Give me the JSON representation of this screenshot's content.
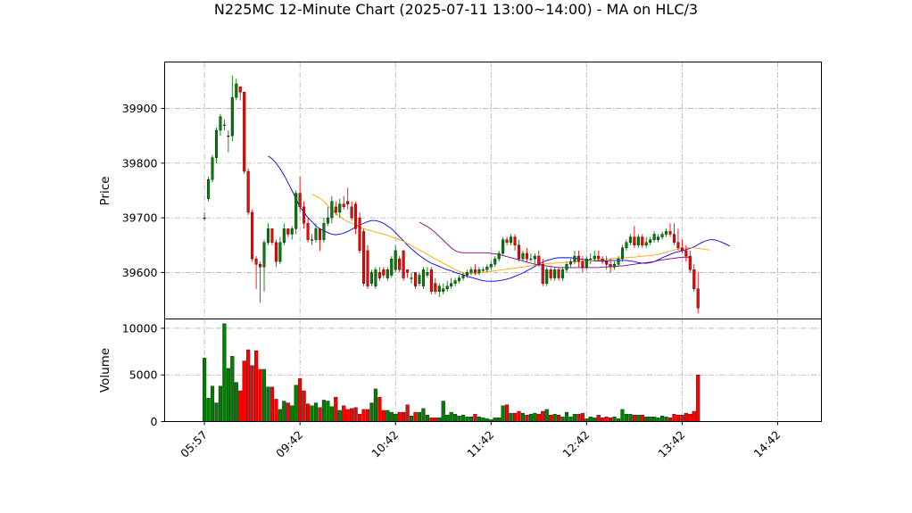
{
  "chart_data": {
    "type": "candlestick",
    "title": "N225MC 12-Minute Chart (2025-07-11 13:00~14:00) - MA on HLC/3",
    "price_panel": {
      "ylabel": "Price",
      "ylim": [
        39515,
        39985
      ],
      "yticks": [
        39600,
        39700,
        39800,
        39900
      ],
      "ytick_labels": [
        "39600",
        "39700",
        "39800",
        "39900"
      ]
    },
    "volume_panel": {
      "ylabel": "Volume",
      "ylim": [
        0,
        11000
      ],
      "yticks": [
        0,
        5000,
        10000
      ],
      "ytick_labels": [
        "0",
        "5000",
        "10000"
      ]
    },
    "xlim": [
      -10,
      155
    ],
    "xticks": [
      0,
      24,
      48,
      72,
      96,
      120,
      144
    ],
    "xtick_labels": [
      "05:57",
      "09:42",
      "10:42",
      "11:42",
      "12:42",
      "13:42",
      "14:42"
    ],
    "colors": {
      "up": "#008000",
      "down": "#ff0000",
      "ma1": "#0000ff",
      "ma2": "#ffa500",
      "ma3": "#800080"
    },
    "candles": {
      "open": [
        39700,
        39735,
        39770,
        39810,
        39860,
        39870,
        39850,
        39850,
        39920,
        39940,
        39930,
        39785,
        39710,
        39625,
        39615,
        39610,
        39655,
        39680,
        39655,
        39620,
        39655,
        39680,
        39670,
        39680,
        39745,
        39720,
        39690,
        39660,
        39660,
        39680,
        39660,
        39690,
        39700,
        39720,
        39710,
        39725,
        39730,
        39720,
        39725,
        39700,
        39675,
        39640,
        39580,
        39575,
        39600,
        39605,
        39590,
        39595,
        39605,
        39625,
        39640,
        39605,
        39590,
        39600,
        39580,
        39575,
        39595,
        39605,
        39580,
        39565,
        39565,
        39570,
        39575,
        39580,
        39585,
        39590,
        39595,
        39600,
        39605,
        39600,
        39605,
        39605,
        39610,
        39615,
        39625,
        39635,
        39660,
        39655,
        39665,
        39650,
        39625,
        39635,
        39625,
        39625,
        39630,
        39615,
        39580,
        39605,
        39590,
        39605,
        39590,
        39605,
        39615,
        39620,
        39630,
        39620,
        39610,
        39625,
        39625,
        39630,
        39625,
        39620,
        39615,
        39610,
        39615,
        39625,
        39645,
        39655,
        39665,
        39650,
        39665,
        39650,
        39655,
        39660,
        39660,
        39665,
        39670,
        39675,
        39670,
        39655,
        39645,
        39640,
        39630,
        39605,
        39570
      ],
      "close": [
        39700,
        39770,
        39810,
        39860,
        39885,
        39870,
        39850,
        39920,
        39945,
        39930,
        39785,
        39710,
        39625,
        39615,
        39610,
        39655,
        39680,
        39655,
        39620,
        39655,
        39680,
        39670,
        39680,
        39745,
        39720,
        39690,
        39660,
        39660,
        39680,
        39660,
        39690,
        39700,
        39730,
        39710,
        39725,
        39720,
        39725,
        39700,
        39680,
        39640,
        39580,
        39575,
        39600,
        39605,
        39590,
        39595,
        39605,
        39625,
        39640,
        39605,
        39590,
        39600,
        39590,
        39575,
        39595,
        39605,
        39600,
        39565,
        39565,
        39575,
        39570,
        39575,
        39580,
        39585,
        39590,
        39595,
        39600,
        39605,
        39600,
        39605,
        39605,
        39610,
        39615,
        39625,
        39635,
        39660,
        39655,
        39665,
        39650,
        39625,
        39635,
        39625,
        39625,
        39630,
        39615,
        39580,
        39605,
        39590,
        39605,
        39590,
        39605,
        39615,
        39620,
        39630,
        39620,
        39610,
        39625,
        39625,
        39630,
        39625,
        39620,
        39615,
        39610,
        39615,
        39625,
        39645,
        39655,
        39665,
        39650,
        39665,
        39650,
        39655,
        39660,
        39670,
        39665,
        39670,
        39675,
        39670,
        39655,
        39645,
        39640,
        39630,
        39605,
        39570,
        39535
      ],
      "high": [
        39710,
        39775,
        39815,
        39865,
        39890,
        39880,
        39860,
        39960,
        39955,
        39940,
        39930,
        39790,
        39715,
        39630,
        39620,
        39660,
        39690,
        39680,
        39660,
        39665,
        39690,
        39680,
        39685,
        39750,
        39775,
        39730,
        39700,
        39670,
        39690,
        39680,
        39700,
        39720,
        39740,
        39730,
        39735,
        39740,
        39755,
        39730,
        39730,
        39710,
        39680,
        39650,
        39605,
        39610,
        39610,
        39610,
        39610,
        39630,
        39650,
        39630,
        39600,
        39605,
        39600,
        39595,
        39600,
        39610,
        39610,
        39610,
        39590,
        39580,
        39580,
        39585,
        39590,
        39590,
        39595,
        39600,
        39605,
        39610,
        39615,
        39610,
        39610,
        39615,
        39620,
        39630,
        39640,
        39665,
        39665,
        39670,
        39670,
        39660,
        39640,
        39645,
        39635,
        39635,
        39640,
        39625,
        39610,
        39610,
        39610,
        39610,
        39610,
        39620,
        39625,
        39640,
        39640,
        39630,
        39630,
        39635,
        39640,
        39640,
        39630,
        39630,
        39625,
        39620,
        39630,
        39650,
        39660,
        39670,
        39685,
        39670,
        39670,
        39665,
        39665,
        39675,
        39670,
        39675,
        39680,
        39690,
        39690,
        39680,
        39660,
        39650,
        39640,
        39615,
        39600
      ],
      "low": [
        39695,
        39730,
        39765,
        39800,
        39850,
        39860,
        39820,
        39840,
        39915,
        39915,
        39780,
        39705,
        39620,
        39570,
        39545,
        39565,
        39650,
        39650,
        39610,
        39615,
        39650,
        39665,
        39660,
        39670,
        39710,
        39680,
        39655,
        39650,
        39655,
        39640,
        39655,
        39685,
        39690,
        39705,
        39700,
        39715,
        39715,
        39695,
        39670,
        39635,
        39575,
        39570,
        39575,
        39570,
        39585,
        39590,
        39585,
        39590,
        39600,
        39600,
        39585,
        39590,
        39580,
        39570,
        39575,
        39570,
        39590,
        39560,
        39560,
        39555,
        39560,
        39565,
        39570,
        39575,
        39580,
        39585,
        39590,
        39595,
        39595,
        39595,
        39600,
        39600,
        39605,
        39610,
        39620,
        39630,
        39650,
        39650,
        39640,
        39620,
        39620,
        39620,
        39620,
        39615,
        39610,
        39575,
        39575,
        39585,
        39585,
        39585,
        39585,
        39600,
        39610,
        39615,
        39610,
        39600,
        39605,
        39615,
        39620,
        39620,
        39615,
        39605,
        39600,
        39605,
        39610,
        39620,
        39640,
        39650,
        39645,
        39645,
        39645,
        39645,
        39650,
        39655,
        39655,
        39660,
        39665,
        39665,
        39650,
        39640,
        39635,
        39620,
        39600,
        39565,
        39525
      ]
    },
    "volume": [
      6800,
      2500,
      3800,
      2000,
      3800,
      10500,
      5700,
      7000,
      4200,
      3300,
      6500,
      7700,
      6000,
      7600,
      5600,
      5600,
      3700,
      3700,
      2400,
      1300,
      2200,
      2000,
      1700,
      3900,
      4600,
      3300,
      1900,
      1700,
      2000,
      1500,
      2300,
      2200,
      1600,
      2600,
      1200,
      1700,
      1300,
      1400,
      1500,
      800,
      1300,
      1300,
      2000,
      3500,
      2600,
      1200,
      1200,
      1000,
      800,
      1000,
      1000,
      1800,
      600,
      1000,
      1000,
      1400,
      700,
      400,
      400,
      400,
      2200,
      700,
      1000,
      800,
      600,
      700,
      500,
      500,
      800,
      500,
      400,
      300,
      200,
      400,
      400,
      1700,
      1800,
      900,
      900,
      1100,
      900,
      700,
      800,
      900,
      800,
      1100,
      1300,
      700,
      800,
      700,
      500,
      1000,
      500,
      800,
      800,
      900,
      300,
      500,
      400,
      700,
      400,
      500,
      400,
      500,
      300,
      1300,
      800,
      800,
      700,
      700,
      700,
      500,
      500,
      500,
      400,
      600,
      500,
      400,
      800,
      700,
      700,
      900,
      800,
      1100,
      5000
    ],
    "moving_averages": [
      {
        "start": 16,
        "color": "#0000ff",
        "values": [
          39813,
          39808,
          39800,
          39790,
          39778,
          39764,
          39750,
          39735,
          39720,
          39710,
          39700,
          39693,
          39685,
          39680,
          39676,
          39673,
          39670,
          39669,
          39670,
          39672,
          39675,
          39679,
          39683,
          39687,
          39690,
          39693,
          39695,
          39695,
          39693,
          39690,
          39685,
          39680,
          39673,
          39665,
          39658,
          39650,
          39643,
          39637,
          39631,
          39626,
          39621,
          39617,
          39614,
          39611,
          39608,
          39605,
          39603,
          39600,
          39598,
          39596,
          39593,
          39591,
          39589,
          39587,
          39585,
          39584,
          39584,
          39584,
          39585,
          39586,
          39588,
          39590,
          39593,
          39596,
          39599,
          39603,
          39607,
          39611,
          39615,
          39619,
          39622,
          39624,
          39626,
          39627,
          39627,
          39627,
          39627,
          39626,
          39625,
          39624,
          39623,
          39622,
          39621,
          39621,
          39621,
          39621,
          39622,
          39622,
          39622,
          39622,
          39622,
          39621,
          39620,
          39618,
          39617,
          39617,
          39618,
          39620,
          39623,
          39627,
          39630,
          39633,
          39636,
          39638,
          39640,
          39642,
          39644,
          39647,
          39651,
          39655,
          39658,
          39660,
          39660,
          39658,
          39655,
          39652,
          39648
        ]
      },
      {
        "start": 27,
        "color": "#ffa500",
        "values": [
          39743,
          39740,
          39736,
          39730,
          39722,
          39715,
          39708,
          39702,
          39697,
          39693,
          39690,
          39686,
          39683,
          39680,
          39678,
          39676,
          39674,
          39672,
          39670,
          39668,
          39665,
          39663,
          39660,
          39657,
          39653,
          39649,
          39645,
          39641,
          39637,
          39633,
          39629,
          39625,
          39621,
          39617,
          39613,
          39609,
          39605,
          39602,
          39600,
          39598,
          39598,
          39598,
          39599,
          39600,
          39601,
          39602,
          39603,
          39604,
          39605,
          39606,
          39607,
          39608,
          39609,
          39610,
          39611,
          39612,
          39613,
          39614,
          39615,
          39616,
          39617,
          39617,
          39618,
          39618,
          39619,
          39619,
          39620,
          39620,
          39621,
          39621,
          39622,
          39622,
          39623,
          39624,
          39624,
          39625,
          39626,
          39626,
          39627,
          39627,
          39628,
          39628,
          39629,
          39630,
          39630,
          39631,
          39632,
          39633,
          39635,
          39637,
          39639,
          39641,
          39643,
          39644,
          39645,
          39645,
          39645,
          39644,
          39643,
          39642,
          39641
        ]
      },
      {
        "start": 54,
        "color": "#800080",
        "values": [
          39692,
          39688,
          39684,
          39679,
          39673,
          39666,
          39659,
          39652,
          39645,
          39640,
          39637,
          39636,
          39636,
          39636,
          39636,
          39636,
          39636,
          39636,
          39635,
          39634,
          39633,
          39631,
          39629,
          39627,
          39625,
          39623,
          39621,
          39619,
          39617,
          39615,
          39614,
          39613,
          39612,
          39611,
          39610,
          39609,
          39609,
          39609,
          39609,
          39609,
          39609,
          39609,
          39609,
          39609,
          39609,
          39609,
          39610,
          39610,
          39611,
          39611,
          39612,
          39612,
          39613,
          39614,
          39615,
          39616,
          39617,
          39618,
          39619,
          39620,
          39622,
          39623,
          39624,
          39625,
          39626,
          39627,
          39628,
          39628,
          39628
        ]
      }
    ]
  }
}
